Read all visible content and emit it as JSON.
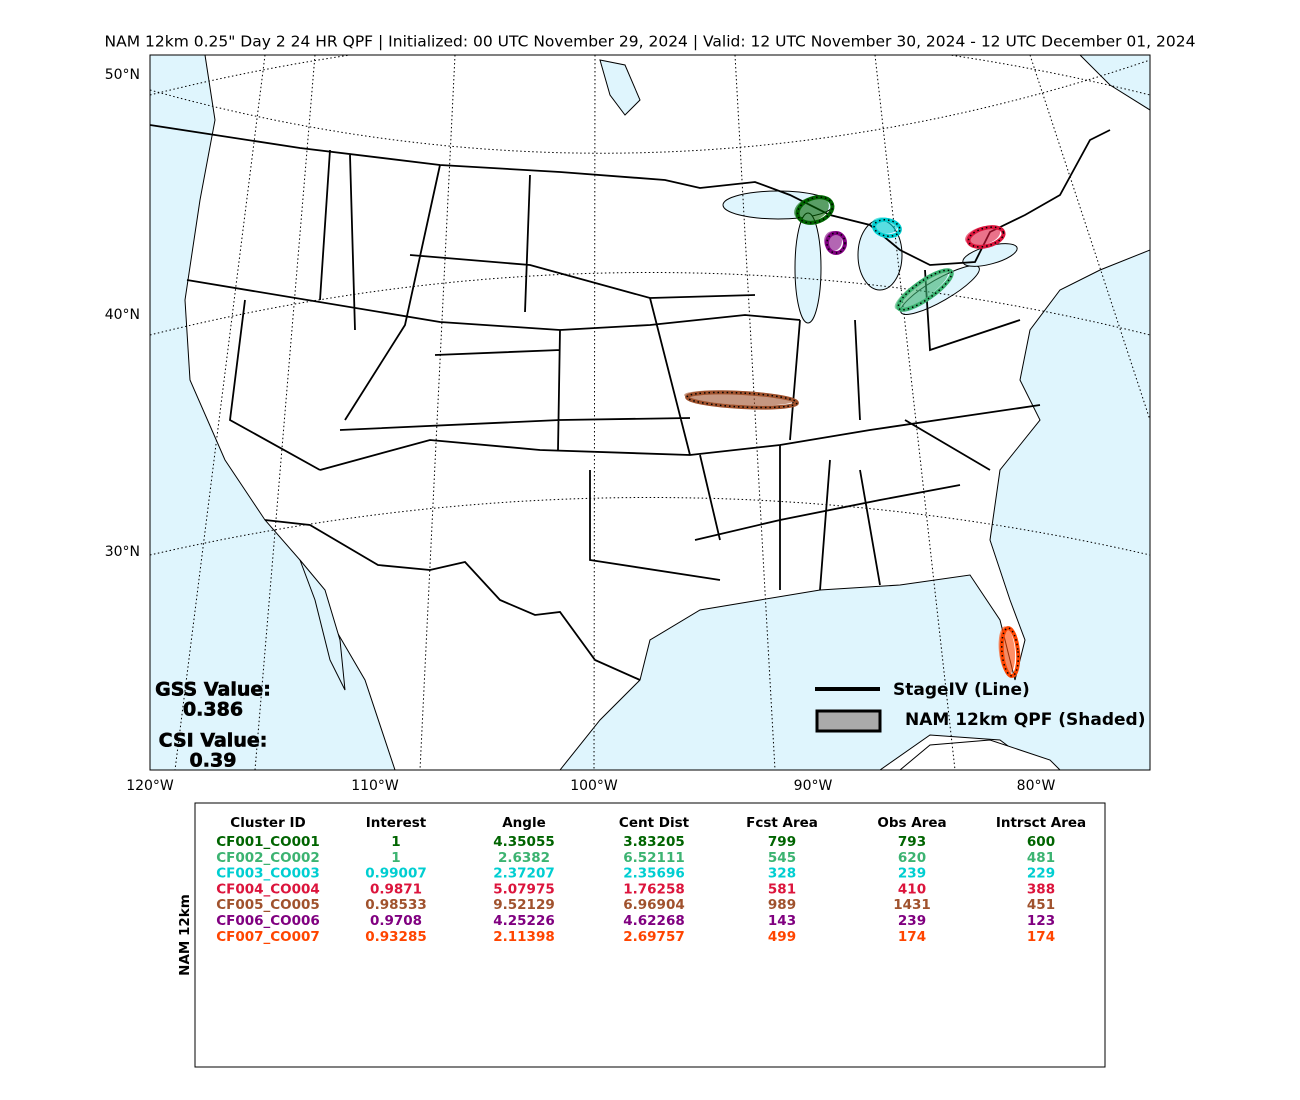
{
  "title": "NAM 12km 0.25\" Day 2 24 HR QPF | Initialized: 00 UTC November 29, 2024 | Valid: 12 UTC November 30, 2024 - 12 UTC December 01, 2024",
  "map": {
    "lat_labels": [
      "50°N",
      "40°N",
      "30°N"
    ],
    "lon_labels": [
      "120°W",
      "110°W",
      "100°W",
      "90°W",
      "80°W"
    ]
  },
  "scores": {
    "gss_label": "GSS Value:",
    "gss": 0.386,
    "csi_label": "CSI Value:",
    "csi": 0.39
  },
  "legend": {
    "line": "StageIV (Line)",
    "shaded": "NAM 12km QPF (Shaded)"
  },
  "table": {
    "side_label": "NAM 12km",
    "columns": [
      "Cluster ID",
      "Interest",
      "Angle",
      "Cent Dist",
      "Fcst Area",
      "Obs Area",
      "Intrsct Area"
    ],
    "rows": [
      {
        "color": "#006400",
        "cells": [
          "CF001_CO001",
          1,
          4.35055,
          3.83205,
          799,
          793,
          600
        ]
      },
      {
        "color": "#3cb371",
        "cells": [
          "CF002_CO002",
          1,
          2.6382,
          6.52111,
          545,
          620,
          481
        ]
      },
      {
        "color": "#00ced1",
        "cells": [
          "CF003_CO003",
          0.99007,
          2.37207,
          2.35696,
          328,
          239,
          229
        ]
      },
      {
        "color": "#dc143c",
        "cells": [
          "CF004_CO004",
          0.9871,
          5.07975,
          1.76258,
          581,
          410,
          388
        ]
      },
      {
        "color": "#a0522d",
        "cells": [
          "CF005_CO005",
          0.98533,
          9.52129,
          6.96904,
          989,
          1431,
          451
        ]
      },
      {
        "color": "#800080",
        "cells": [
          "CF006_CO006",
          0.9708,
          4.25226,
          4.62268,
          143,
          239,
          123
        ]
      },
      {
        "color": "#ff4500",
        "cells": [
          "CF007_CO007",
          0.93285,
          2.11398,
          2.69757,
          499,
          174,
          174
        ]
      }
    ]
  }
}
